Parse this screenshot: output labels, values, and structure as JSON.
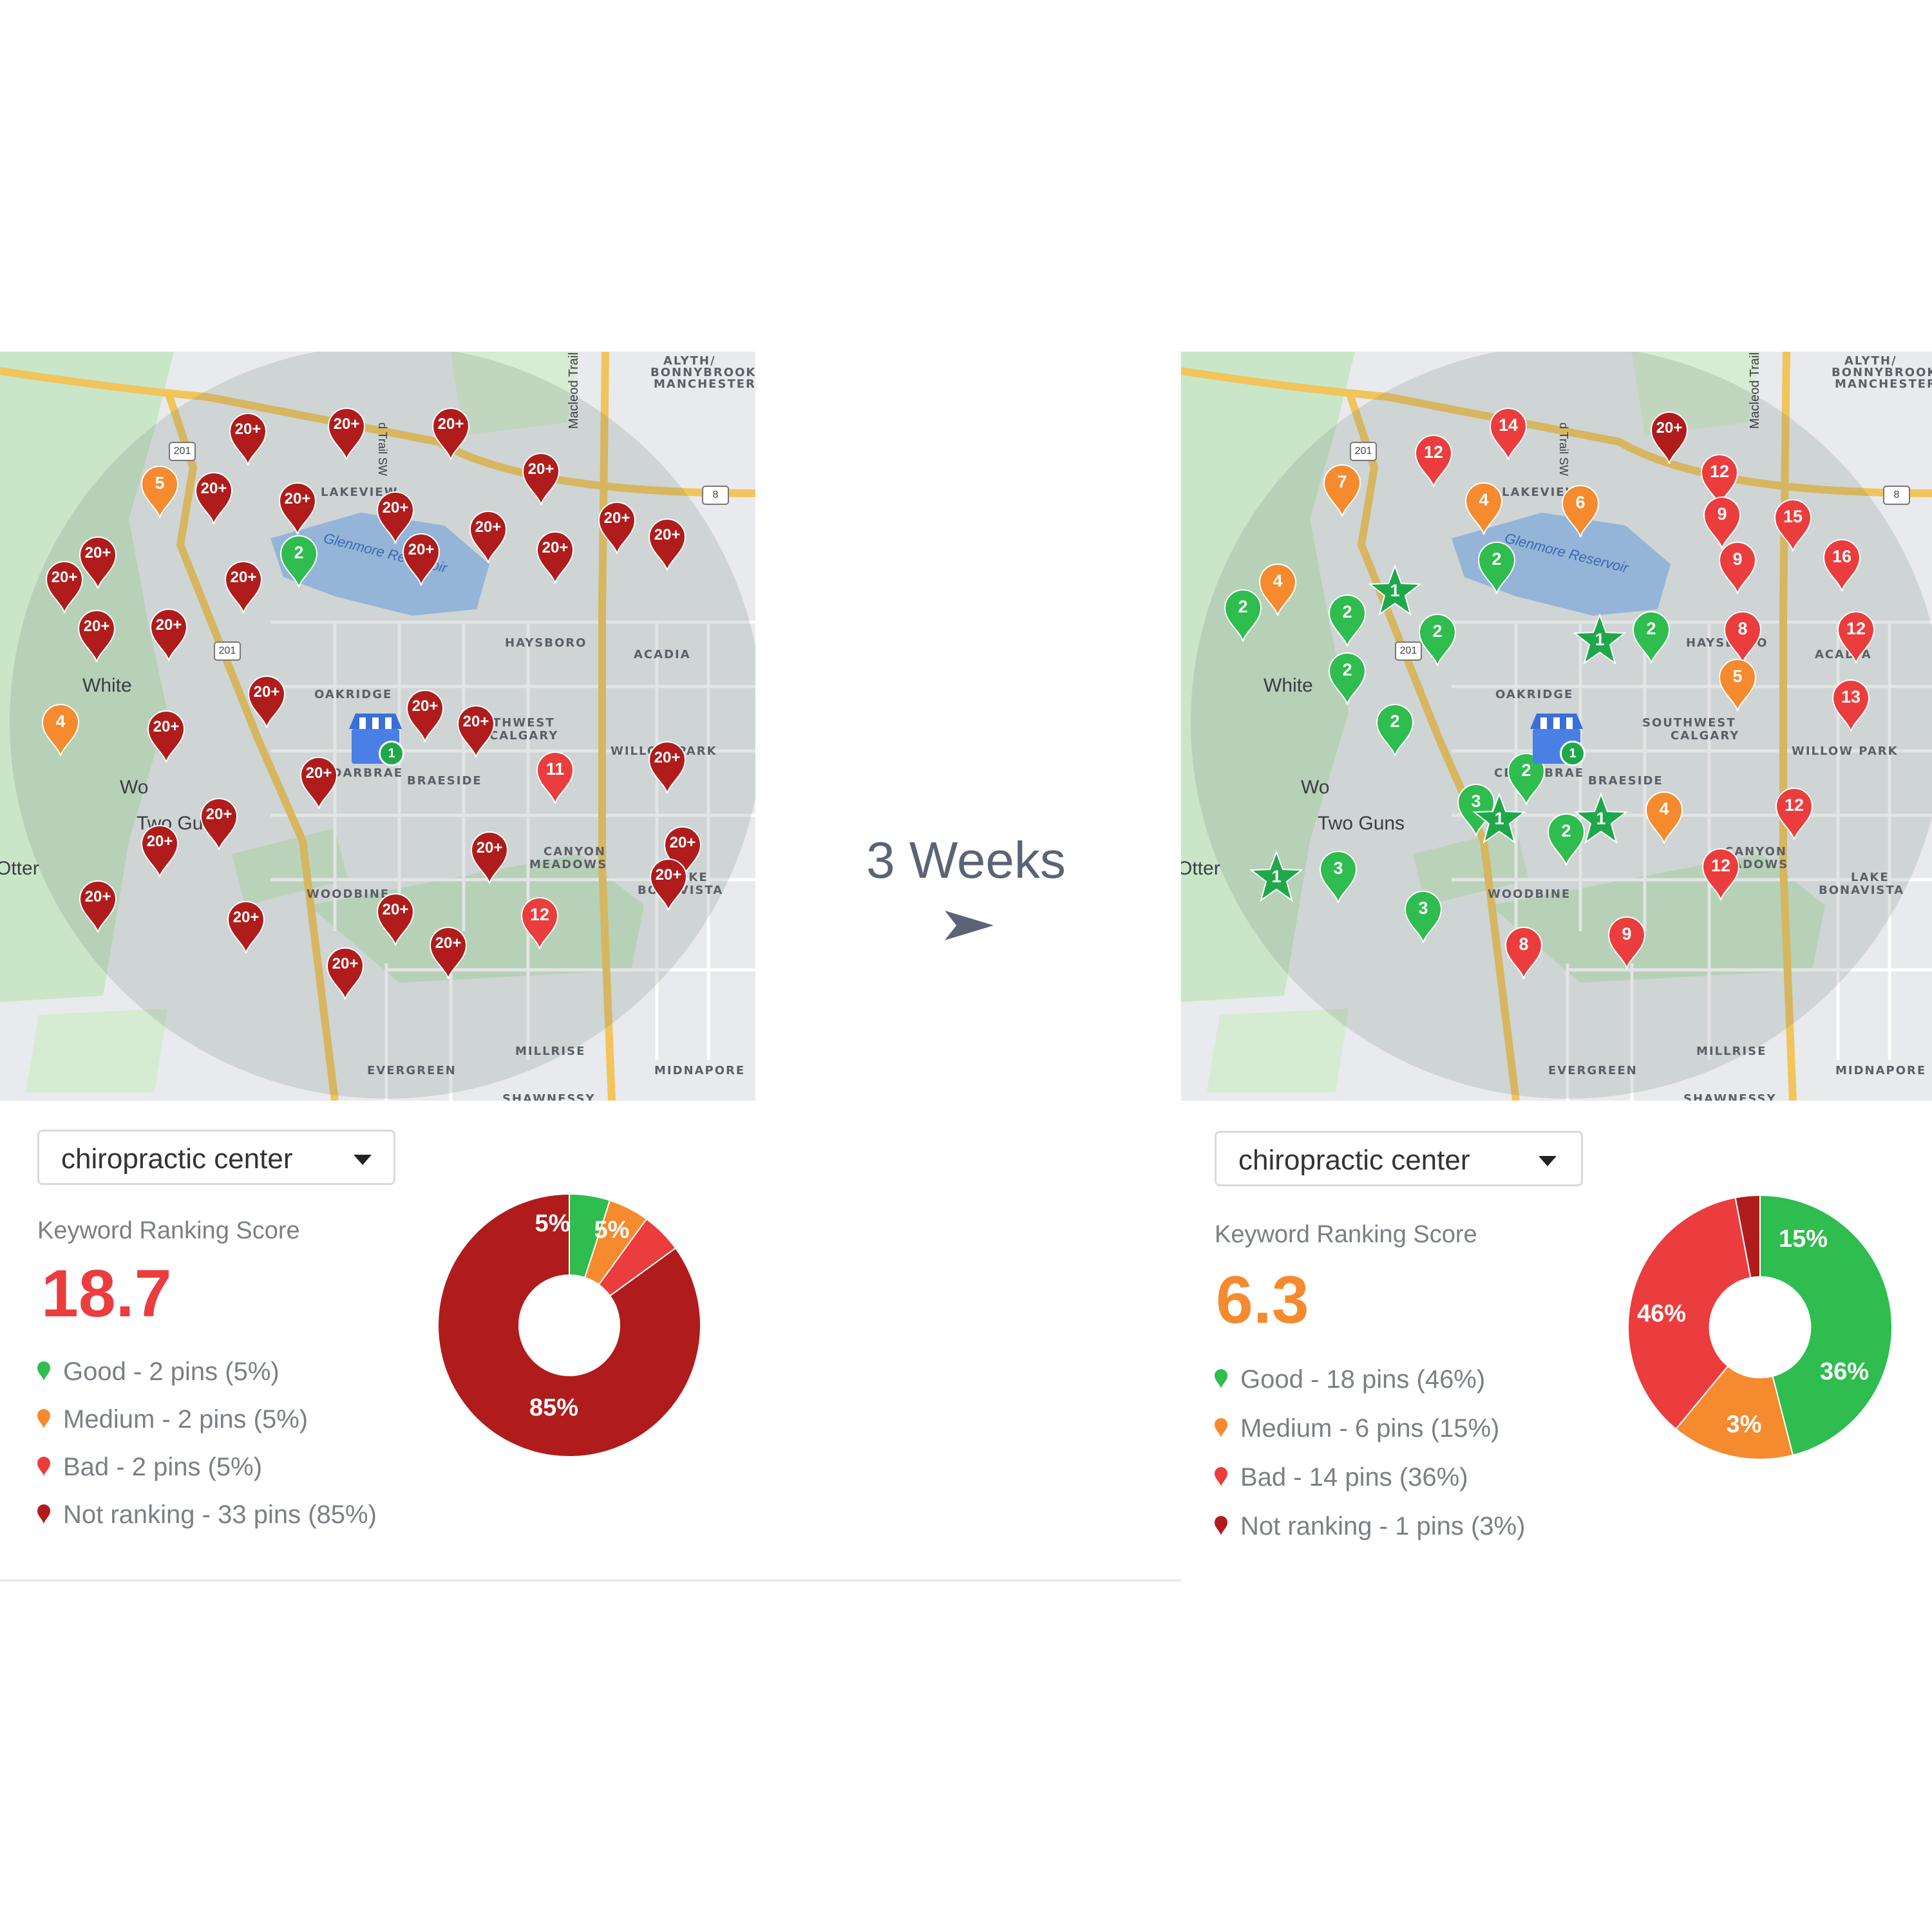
{
  "center": {
    "duration_label": "3 Weeks"
  },
  "colors": {
    "good": "#2ebd4e",
    "medium": "#f58a2e",
    "bad": "#eb3d3d",
    "not_ranking": "#b01c1c"
  },
  "maps": {
    "labels": {
      "alyth1": "ALYTH/",
      "alyth2": "BONNYBROOK",
      "alyth3": "MANCHESTER",
      "lakeview": "LAKEVIEW",
      "oakridge": "OAKRIDGE",
      "cedarbrae": "CEDARBRAE",
      "braeside": "BRAESIDE",
      "southwest1": "SOUTHWEST",
      "southwest2": "CALGARY",
      "woodbine": "WOODBINE",
      "canyon1": "CANYON",
      "canyon2": "MEADOWS",
      "lake1": "LAKE",
      "lake2": "BONAVISTA",
      "willow": "WILLOW PARK",
      "acadia": "ACADIA",
      "haysboro": "HAYSBORO",
      "millrise": "MILLRISE",
      "midnapore": "MIDNAPORE",
      "evergreen": "EVERGREEN",
      "shawnessy": "SHAWNESSY",
      "white": "White",
      "wo": "Wo",
      "two_guns": "Two Guns",
      "otter": "Otter",
      "reservoir": "Glenmore Reservoir",
      "macleod": "Macleod Trail",
      "trail_sw": "d Trail SW",
      "hwy201": "201",
      "hwy8": "8"
    },
    "before": {
      "business_badge": "1",
      "pins": [
        {
          "v": "20+",
          "c": "nr"
        },
        {
          "v": "20+",
          "c": "nr"
        },
        {
          "v": "20+",
          "c": "nr"
        },
        {
          "v": "20+",
          "c": "nr"
        },
        {
          "v": "20+",
          "c": "nr"
        },
        {
          "v": "5",
          "c": "med"
        },
        {
          "v": "20+",
          "c": "nr"
        },
        {
          "v": "20+",
          "c": "nr"
        },
        {
          "v": "20+",
          "c": "nr"
        },
        {
          "v": "20+",
          "c": "nr"
        },
        {
          "v": "20+",
          "c": "nr"
        },
        {
          "v": "2",
          "c": "good"
        },
        {
          "v": "20+",
          "c": "nr"
        },
        {
          "v": "20+",
          "c": "nr"
        },
        {
          "v": "20+",
          "c": "nr"
        },
        {
          "v": "20+",
          "c": "nr"
        },
        {
          "v": "20+",
          "c": "nr"
        },
        {
          "v": "20+",
          "c": "nr"
        },
        {
          "v": "20+",
          "c": "nr"
        },
        {
          "v": "20+",
          "c": "nr"
        },
        {
          "v": "20+",
          "c": "nr"
        },
        {
          "v": "4",
          "c": "med"
        },
        {
          "v": "20+",
          "c": "nr"
        },
        {
          "v": "20+",
          "c": "nr"
        },
        {
          "v": "20+",
          "c": "nr"
        },
        {
          "v": "11",
          "c": "bad"
        },
        {
          "v": "20+",
          "c": "nr"
        },
        {
          "v": "20+",
          "c": "nr"
        },
        {
          "v": "20+",
          "c": "nr"
        },
        {
          "v": "20+",
          "c": "nr"
        },
        {
          "v": "20+",
          "c": "nr"
        },
        {
          "v": "20+",
          "c": "nr"
        },
        {
          "v": "20+",
          "c": "nr"
        },
        {
          "v": "20+",
          "c": "nr"
        },
        {
          "v": "12",
          "c": "bad"
        },
        {
          "v": "20+",
          "c": "nr"
        },
        {
          "v": "20+",
          "c": "nr"
        },
        {
          "v": "20+",
          "c": "nr"
        }
      ]
    },
    "after": {
      "business_badge": "1",
      "pins": [
        {
          "v": "12",
          "c": "bad"
        },
        {
          "v": "14",
          "c": "bad"
        },
        {
          "v": "20+",
          "c": "nr"
        },
        {
          "v": "12",
          "c": "bad"
        },
        {
          "v": "7",
          "c": "med"
        },
        {
          "v": "4",
          "c": "med"
        },
        {
          "v": "6",
          "c": "med"
        },
        {
          "v": "9",
          "c": "bad"
        },
        {
          "v": "15",
          "c": "bad"
        },
        {
          "v": "4",
          "c": "med"
        },
        {
          "v": "2",
          "c": "good"
        },
        {
          "v": "9",
          "c": "bad"
        },
        {
          "v": "16",
          "c": "bad"
        },
        {
          "v": "2",
          "c": "good"
        },
        {
          "v": "2",
          "c": "good"
        },
        {
          "v": "2",
          "c": "good"
        },
        {
          "v": "2",
          "c": "good"
        },
        {
          "v": "8",
          "c": "bad"
        },
        {
          "v": "12",
          "c": "bad"
        },
        {
          "v": "2",
          "c": "good"
        },
        {
          "v": "2",
          "c": "good"
        },
        {
          "v": "5",
          "c": "med"
        },
        {
          "v": "13",
          "c": "bad"
        },
        {
          "v": "2",
          "c": "good"
        },
        {
          "v": "3",
          "c": "good"
        },
        {
          "v": "2",
          "c": "good"
        },
        {
          "v": "4",
          "c": "med"
        },
        {
          "v": "12",
          "c": "bad"
        },
        {
          "v": "3",
          "c": "good"
        },
        {
          "v": "12",
          "c": "bad"
        },
        {
          "v": "3",
          "c": "good"
        },
        {
          "v": "8",
          "c": "bad"
        },
        {
          "v": "9",
          "c": "bad"
        }
      ],
      "stars": [
        {
          "v": "1"
        },
        {
          "v": "1"
        },
        {
          "v": "1"
        },
        {
          "v": "1"
        },
        {
          "v": "1"
        }
      ]
    }
  },
  "panels": [
    {
      "keyword": "chiropractic center",
      "score_label": "Keyword Ranking Score",
      "score": "18.7",
      "score_color": "#eb3d3d",
      "legend": [
        {
          "text": "Good - 2 pins (5%)",
          "c": "good"
        },
        {
          "text": "Medium - 2 pins (5%)",
          "c": "med"
        },
        {
          "text": "Bad - 2 pins (5%)",
          "c": "bad"
        },
        {
          "text": "Not ranking - 33 pins (85%)",
          "c": "nr"
        }
      ]
    },
    {
      "keyword": "chiropractic center",
      "score_label": "Keyword Ranking Score",
      "score": "6.3",
      "score_color": "#f58a2e",
      "legend": [
        {
          "text": "Good - 18 pins (46%)",
          "c": "good"
        },
        {
          "text": "Medium - 6 pins (15%)",
          "c": "med"
        },
        {
          "text": "Bad - 14 pins (36%)",
          "c": "bad"
        },
        {
          "text": "Not ranking - 1 pins (3%)",
          "c": "nr"
        }
      ]
    }
  ],
  "chart_data": [
    {
      "type": "pie",
      "categories": [
        "Good",
        "Medium",
        "Bad",
        "Not ranking"
      ],
      "values": [
        5,
        5,
        5,
        85
      ],
      "labels": [
        "5%",
        "",
        "5%",
        "85%"
      ]
    },
    {
      "type": "pie",
      "categories": [
        "Good",
        "Medium",
        "Bad",
        "Not ranking"
      ],
      "values": [
        46,
        15,
        36,
        3
      ],
      "labels": [
        "46%",
        "15%",
        "36%",
        "3%"
      ]
    }
  ]
}
